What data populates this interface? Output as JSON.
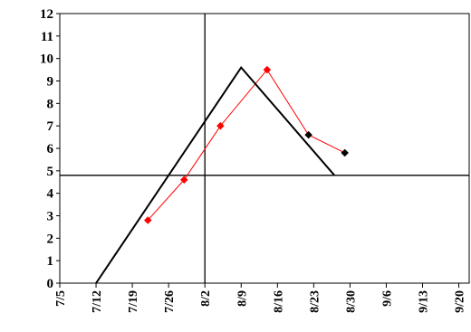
{
  "chart_data": {
    "type": "line",
    "title": "",
    "xlabel": "",
    "ylabel": "",
    "ylim": [
      0,
      12
    ],
    "xlim": [
      "2000-07-05",
      "2000-09-22"
    ],
    "y_ticks": [
      0,
      1,
      2,
      3,
      4,
      5,
      6,
      7,
      8,
      9,
      10,
      11,
      12
    ],
    "x_ticks": [
      {
        "date": "2000-07-05",
        "label": "7/5"
      },
      {
        "date": "2000-07-12",
        "label": "7/12"
      },
      {
        "date": "2000-07-19",
        "label": "7/19"
      },
      {
        "date": "2000-07-26",
        "label": "7/26"
      },
      {
        "date": "2000-08-02",
        "label": "8/2"
      },
      {
        "date": "2000-08-09",
        "label": "8/9"
      },
      {
        "date": "2000-08-16",
        "label": "8/16"
      },
      {
        "date": "2000-08-23",
        "label": "8/23"
      },
      {
        "date": "2000-08-30",
        "label": "8/30"
      },
      {
        "date": "2000-09-06",
        "label": "9/6"
      },
      {
        "date": "2000-09-13",
        "label": "9/13"
      },
      {
        "date": "2000-09-20",
        "label": "9/20"
      }
    ],
    "grid": false,
    "legend": "none",
    "series": [
      {
        "color": "#ff0000",
        "marker": "diamond",
        "points": [
          {
            "x": "2000-07-22",
            "y": 2.8
          },
          {
            "x": "2000-07-29",
            "y": 4.6
          },
          {
            "x": "2000-08-05",
            "y": 7.0
          },
          {
            "x": "2000-08-14",
            "y": 9.5
          },
          {
            "x": "2000-08-22",
            "y": 6.6
          },
          {
            "x": "2000-08-29",
            "y": 5.8
          }
        ],
        "marker_colors": [
          "#ff0000",
          "#ff0000",
          "#ff0000",
          "#ff0000",
          "#000000",
          "#000000"
        ]
      },
      {
        "color": "#000000",
        "marker": "none",
        "points": [
          {
            "x": "2000-07-12",
            "y": 0.0
          },
          {
            "x": "2000-08-09",
            "y": 9.6
          },
          {
            "x": "2000-08-27",
            "y": 4.8
          }
        ]
      }
    ],
    "reference_lines": [
      {
        "orientation": "vertical",
        "x": "2000-08-02",
        "color": "#000000"
      },
      {
        "orientation": "horizontal",
        "y": 4.8,
        "color": "#000000"
      }
    ]
  }
}
